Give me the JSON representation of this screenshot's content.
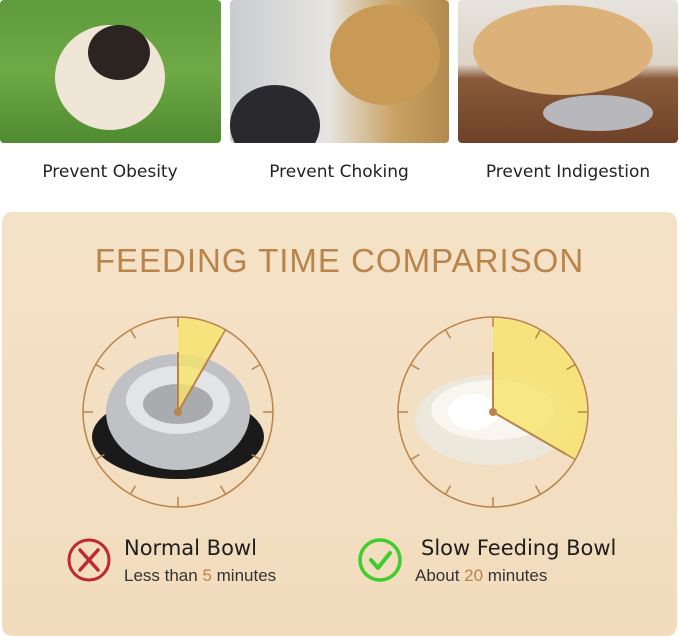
{
  "benefits": [
    {
      "label": "Prevent Obesity",
      "image": "pug-on-grass"
    },
    {
      "label": "Prevent Choking",
      "image": "golden-retriever-mouth-check"
    },
    {
      "label": "Prevent Indigestion",
      "image": "labrador-lying-near-bowl"
    }
  ],
  "comparison": {
    "title": "FEEDING TIME COMPARISON",
    "normal": {
      "name": "Normal Bowl",
      "prefix": "Less than ",
      "value": "5",
      "suffix": " minutes",
      "minutes": 5,
      "icon": "x-circle-icon",
      "color": "#c0282d"
    },
    "slow": {
      "name": "Slow Feeding Bowl",
      "prefix": "About ",
      "value": "20",
      "suffix": " minutes",
      "minutes": 20,
      "icon": "check-circle-icon",
      "color": "#3fcc2e"
    }
  },
  "colors": {
    "accent": "#b9844a",
    "wedge": "#f7e36a",
    "panel": "#f3dfc3"
  }
}
